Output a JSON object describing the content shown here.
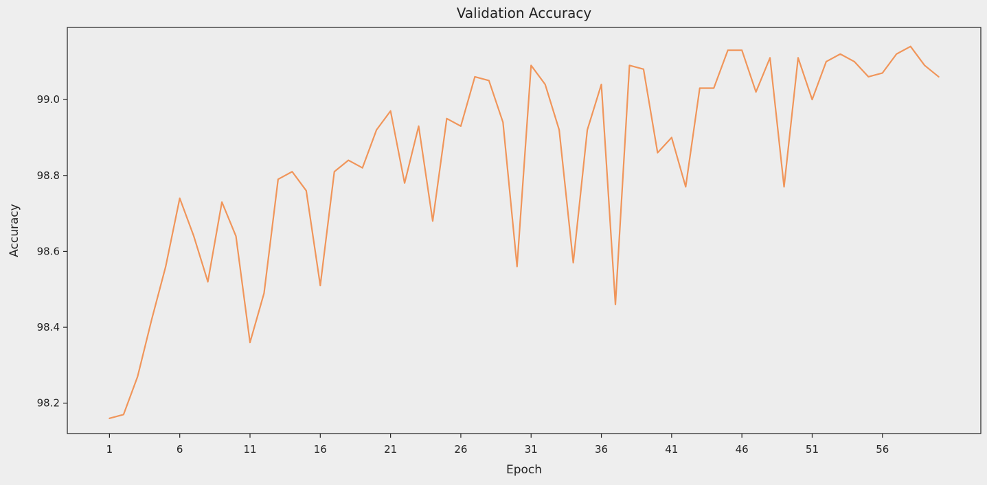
{
  "chart_data": {
    "type": "line",
    "title": "Validation Accuracy",
    "xlabel": "Epoch",
    "ylabel": "Accuracy",
    "x_ticks": [
      1,
      6,
      11,
      16,
      21,
      26,
      31,
      36,
      41,
      46,
      51,
      56
    ],
    "y_ticks": [
      "98.2",
      "98.4",
      "98.6",
      "98.8",
      "99.0"
    ],
    "xlim": [
      -2,
      63
    ],
    "ylim": [
      98.12,
      99.19
    ],
    "grid": false,
    "legend": "none",
    "series": [
      {
        "color": "#f0955a",
        "x": [
          1,
          2,
          3,
          4,
          5,
          6,
          7,
          8,
          9,
          10,
          11,
          12,
          13,
          14,
          15,
          16,
          17,
          18,
          19,
          20,
          21,
          22,
          23,
          24,
          25,
          26,
          27,
          28,
          29,
          30,
          31,
          32,
          33,
          34,
          35,
          36,
          37,
          38,
          39,
          40,
          41,
          42,
          43,
          44,
          45,
          46,
          47,
          48,
          49,
          50,
          51,
          52,
          53,
          54,
          55,
          56,
          57,
          58,
          59,
          60
        ],
        "values": [
          98.16,
          98.17,
          98.27,
          98.42,
          98.56,
          98.74,
          98.64,
          98.52,
          98.73,
          98.64,
          98.36,
          98.49,
          98.79,
          98.81,
          98.76,
          98.51,
          98.81,
          98.84,
          98.82,
          98.92,
          98.97,
          98.78,
          98.93,
          98.68,
          98.95,
          98.93,
          99.06,
          99.05,
          98.94,
          98.56,
          99.09,
          99.04,
          98.92,
          98.57,
          98.92,
          99.04,
          98.46,
          99.09,
          99.08,
          98.86,
          98.9,
          98.77,
          99.03,
          99.03,
          99.13,
          99.13,
          99.02,
          99.11,
          98.77,
          99.11,
          99.0,
          99.1,
          99.12,
          99.1,
          99.06,
          99.07,
          99.12,
          99.14,
          99.09,
          99.06
        ]
      }
    ]
  }
}
